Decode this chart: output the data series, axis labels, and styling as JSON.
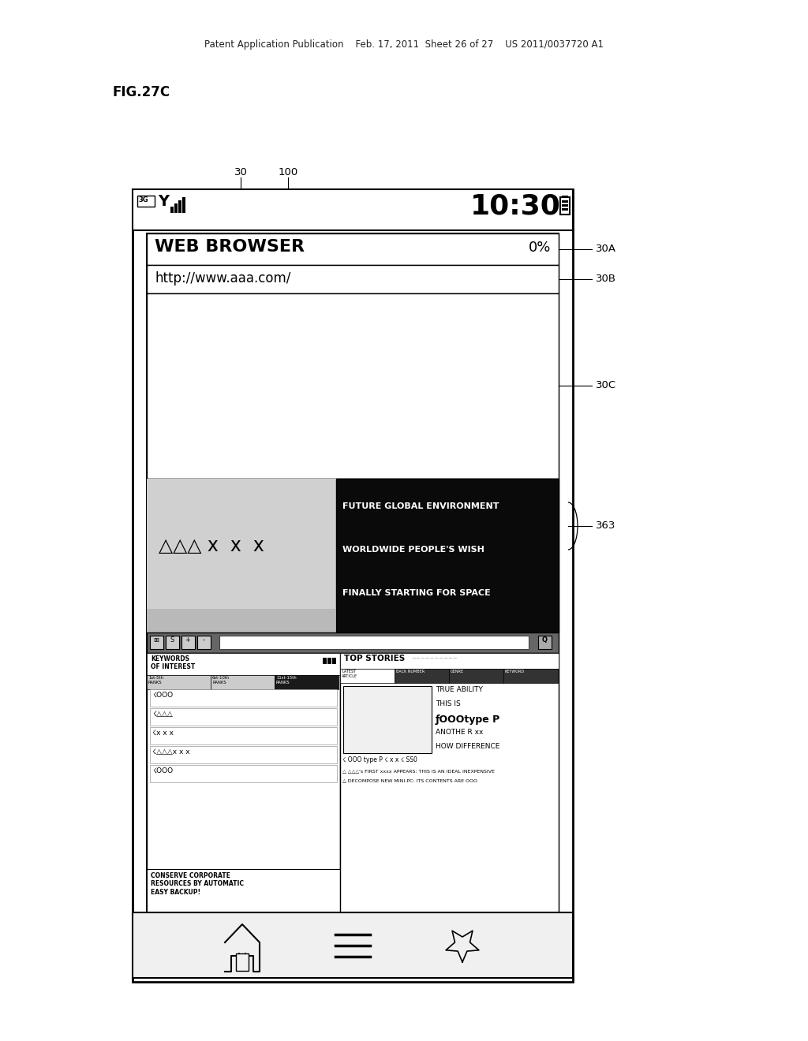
{
  "bg_color": "#ffffff",
  "header_text": "Patent Application Publication    Feb. 17, 2011  Sheet 26 of 27    US 2011/0037720 A1",
  "fig_label": "FIG.27C",
  "time_display": "10:30",
  "web_browser_label": "WEB BROWSER",
  "progress_text": "0%",
  "url_text": "http://www.aaa.com/",
  "label_30": "30",
  "label_100": "100",
  "label_30A": "30A",
  "label_30B": "30B",
  "label_30C": "30C",
  "label_363": "363",
  "ad_text_lines": [
    "FUTURE GLOBAL ENVIRONMENT",
    "WORLDWIDE PEOPLE'S WISH",
    "FINALLY STARTING FOR SPACE"
  ],
  "symbol_line": "△△△ x  x  x",
  "kw_title": "KEYWORDS\nOF INTEREST",
  "kw_ranks": [
    "1st-5th\nRANKS",
    "6st-10th\nRANKS",
    "11st-15th\nRANKS"
  ],
  "kw_items": [
    "☇OOO",
    "☇△△△",
    "☇x x x",
    "☇△△△x x x",
    "☇OOO"
  ],
  "top_stories_title": "TOP STORIES",
  "top_story_tabs": [
    "LATEST\nARTICLE",
    "BACK NUMBER",
    "GENRE",
    "KEYWORD"
  ],
  "story_text": [
    "TRUE ABILITY",
    "THIS IS",
    "ƒOOOtype P",
    "ANOTHE R xx",
    "HOW DIFFERENCE"
  ],
  "bottom_text1": "☇ OOO type P ☇ x x ☇ SS0",
  "bottom_text2": "△ △△△'s FIRST xxxx APPEARS: THIS IS AN IDEAL INEXPENSIVE",
  "bottom_text3": "△ DECOMPOSE NEW MINI-PC: ITS CONTENTS ARE OOO",
  "conserve_text": "CONSERVE CORPORATE\nRESOURCES BY AUTOMATIC\nEASY BACKUP!",
  "dark_bg": "#0a0a0a",
  "ad_gray": "#c0c0c0",
  "toolbar_gray": "#888888",
  "rank_dark": "#1a1a1a"
}
